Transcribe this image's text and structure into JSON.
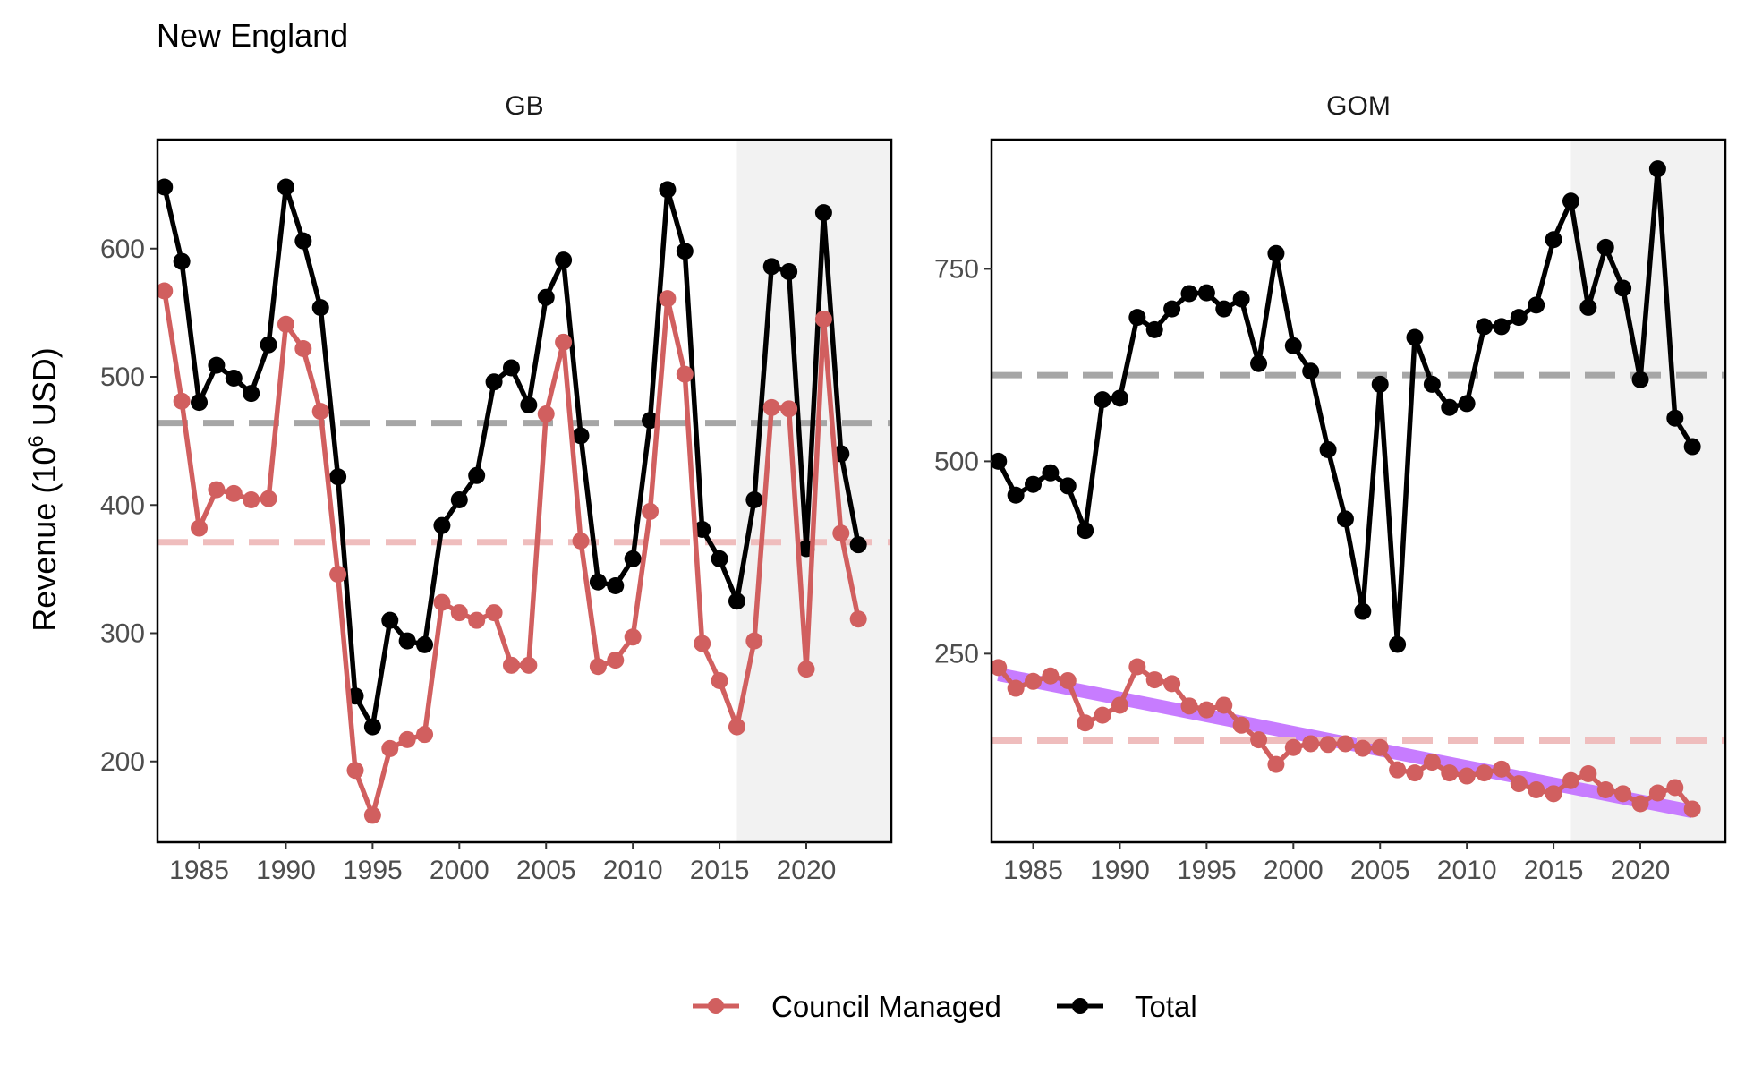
{
  "chart_data": {
    "type": "line",
    "title": "New England",
    "ylabel_main": "Revenue (10",
    "ylabel_sup": "6",
    "ylabel_tail": " USD)",
    "xlabel": "",
    "colors": {
      "council": "#d15f5f",
      "council_mean": "#efbdbd",
      "total": "#000000",
      "total_mean": "#a6a6a6",
      "trend": "#c77cff",
      "shade": "#f2f2f2"
    },
    "legend": {
      "position": "bottom",
      "items": [
        {
          "label": "Council Managed",
          "color": "#d15f5f"
        },
        {
          "label": "Total",
          "color": "#000000"
        }
      ]
    },
    "xlim": [
      1982.6,
      2024.9
    ],
    "xticks": [
      1985,
      1990,
      1995,
      2000,
      2005,
      2010,
      2015,
      2020
    ],
    "shade_from": 2016,
    "panels": [
      {
        "name": "GB",
        "ylim": [
          137,
          685
        ],
        "yticks": [
          200,
          300,
          400,
          500,
          600
        ],
        "means": {
          "total": 464,
          "council": 371
        },
        "series": [
          {
            "name": "Total",
            "key": "total",
            "x": [
              1983,
              1984,
              1985,
              1986,
              1987,
              1988,
              1989,
              1990,
              1991,
              1992,
              1993,
              1994,
              1995,
              1996,
              1997,
              1998,
              1999,
              2000,
              2001,
              2002,
              2003,
              2004,
              2005,
              2006,
              2007,
              2008,
              2009,
              2010,
              2011,
              2012,
              2013,
              2014,
              2015,
              2016,
              2017,
              2018,
              2019,
              2020,
              2021,
              2022,
              2023
            ],
            "values": [
              648,
              590,
              480,
              509,
              499,
              487,
              525,
              648,
              606,
              554,
              422,
              251,
              227,
              310,
              294,
              291,
              384,
              404,
              423,
              496,
              507,
              478,
              562,
              591,
              454,
              340,
              337,
              358,
              466,
              646,
              598,
              381,
              358,
              325,
              404,
              586,
              582,
              366,
              628,
              440,
              369
            ]
          },
          {
            "name": "Council Managed",
            "key": "council",
            "x": [
              1983,
              1984,
              1985,
              1986,
              1987,
              1988,
              1989,
              1990,
              1991,
              1992,
              1993,
              1994,
              1995,
              1996,
              1997,
              1998,
              1999,
              2000,
              2001,
              2002,
              2003,
              2004,
              2005,
              2006,
              2007,
              2008,
              2009,
              2010,
              2011,
              2012,
              2013,
              2014,
              2015,
              2016,
              2017,
              2018,
              2019,
              2020,
              2021,
              2022,
              2023
            ],
            "values": [
              567,
              481,
              382,
              412,
              409,
              404,
              405,
              541,
              522,
              473,
              346,
              193,
              158,
              210,
              217,
              221,
              324,
              316,
              310,
              316,
              275,
              275,
              471,
              527,
              372,
              274,
              279,
              297,
              395,
              561,
              502,
              292,
              263,
              227,
              294,
              476,
              475,
              272,
              545,
              378,
              311
            ]
          }
        ],
        "trend": null
      },
      {
        "name": "GOM",
        "ylim": [
          5,
          918
        ],
        "yticks": [
          250,
          500,
          750
        ],
        "means": {
          "total": 612,
          "council": 137
        },
        "series": [
          {
            "name": "Total",
            "key": "total",
            "x": [
              1983,
              1984,
              1985,
              1986,
              1987,
              1988,
              1989,
              1990,
              1991,
              1992,
              1993,
              1994,
              1995,
              1996,
              1997,
              1998,
              1999,
              2000,
              2001,
              2002,
              2003,
              2004,
              2005,
              2006,
              2007,
              2008,
              2009,
              2010,
              2011,
              2012,
              2013,
              2014,
              2015,
              2016,
              2017,
              2018,
              2019,
              2020,
              2021,
              2022,
              2023
            ],
            "values": [
              500,
              456,
              470,
              485,
              468,
              410,
              580,
              582,
              687,
              671,
              698,
              718,
              719,
              698,
              711,
              627,
              770,
              650,
              617,
              515,
              425,
              305,
              600,
              262,
              661,
              600,
              570,
              575,
              675,
              675,
              687,
              703,
              788,
              838,
              700,
              778,
              725,
              606,
              880,
              556,
              519
            ]
          },
          {
            "name": "Council Managed",
            "key": "council",
            "x": [
              1983,
              1984,
              1985,
              1986,
              1987,
              1988,
              1989,
              1990,
              1991,
              1992,
              1993,
              1994,
              1995,
              1996,
              1997,
              1998,
              1999,
              2000,
              2001,
              2002,
              2003,
              2004,
              2005,
              2006,
              2007,
              2008,
              2009,
              2010,
              2011,
              2012,
              2013,
              2014,
              2015,
              2016,
              2017,
              2018,
              2019,
              2020,
              2021,
              2022,
              2023
            ],
            "values": [
              232,
              205,
              214,
              221,
              215,
              160,
              170,
              183,
              233,
              216,
              211,
              182,
              177,
              183,
              157,
              138,
              106,
              128,
              133,
              132,
              133,
              127,
              128,
              99,
              95,
              109,
              95,
              91,
              95,
              100,
              81,
              73,
              68,
              85,
              94,
              73,
              68,
              55,
              69,
              76,
              48
            ]
          }
        ],
        "trend": {
          "x": [
            1983,
            2023
          ],
          "values": [
            223,
            45
          ]
        }
      }
    ]
  }
}
